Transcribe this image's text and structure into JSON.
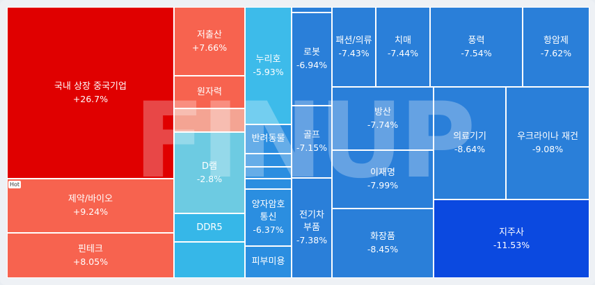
{
  "badge": {
    "hot": "Hot"
  },
  "watermark": "FINUP",
  "chart_data": {
    "type": "treemap",
    "value_unit": "%",
    "items": [
      {
        "name": "국내 상장 중국기업",
        "value": "+26.7%",
        "change": 26.7,
        "color": "#e00000"
      },
      {
        "name": "제약/바이오",
        "value": "+9.24%",
        "change": 9.24,
        "color": "#f7634f"
      },
      {
        "name": "핀테크",
        "value": "+8.05%",
        "change": 8.05,
        "color": "#f7634f"
      },
      {
        "name": "저출산",
        "value": "+7.66%",
        "change": 7.66,
        "color": "#f7634f"
      },
      {
        "name": "원자력",
        "value": "",
        "change": null,
        "color": "#f7634f"
      },
      {
        "name": "",
        "value": "",
        "change": null,
        "color": "#f4a493"
      },
      {
        "name": "D램",
        "value": "-2.8%",
        "change": -2.8,
        "color": "#6dcbe2"
      },
      {
        "name": "DDR5",
        "value": "",
        "change": null,
        "color": "#36b7e8"
      },
      {
        "name": "",
        "value": "",
        "change": null,
        "color": "#36b7e8"
      },
      {
        "name": "누리호",
        "value": "-5.93%",
        "change": -5.93,
        "color": "#3dbbea"
      },
      {
        "name": "반려동물",
        "value": "",
        "change": null,
        "color": "#2b8ee0"
      },
      {
        "name": "",
        "value": "",
        "change": null,
        "color": "#2b8ee0"
      },
      {
        "name": "",
        "value": "",
        "change": null,
        "color": "#2b8ee0"
      },
      {
        "name": "",
        "value": "",
        "change": null,
        "color": "#2b8ee0"
      },
      {
        "name": "양자암호 통신",
        "value": "-6.37%",
        "change": -6.37,
        "color": "#2b8ee0"
      },
      {
        "name": "피부미용",
        "value": "",
        "change": null,
        "color": "#2b8ee0"
      },
      {
        "name": "",
        "value": "",
        "change": null,
        "color": "#2a7fd9"
      },
      {
        "name": "로봇",
        "value": "-6.94%",
        "change": -6.94,
        "color": "#2a7fd9"
      },
      {
        "name": "골프",
        "value": "-7.15%",
        "change": -7.15,
        "color": "#2a7fd9"
      },
      {
        "name": "전기차 부품",
        "value": "-7.38%",
        "change": -7.38,
        "color": "#2a7fd9"
      },
      {
        "name": "패션/의류",
        "value": "-7.43%",
        "change": -7.43,
        "color": "#2a7fd9"
      },
      {
        "name": "치매",
        "value": "-7.44%",
        "change": -7.44,
        "color": "#2a7fd9"
      },
      {
        "name": "풍력",
        "value": "-7.54%",
        "change": -7.54,
        "color": "#2a7fd9"
      },
      {
        "name": "항암제",
        "value": "-7.62%",
        "change": -7.62,
        "color": "#2a7fd9"
      },
      {
        "name": "방산",
        "value": "-7.74%",
        "change": -7.74,
        "color": "#2a7fd9"
      },
      {
        "name": "이재명",
        "value": "-7.99%",
        "change": -7.99,
        "color": "#2a7fd9"
      },
      {
        "name": "화장품",
        "value": "-8.45%",
        "change": -8.45,
        "color": "#2a7fd9"
      },
      {
        "name": "의료기기",
        "value": "-8.64%",
        "change": -8.64,
        "color": "#2a7fd9"
      },
      {
        "name": "우크라이나 재건",
        "value": "-9.08%",
        "change": -9.08,
        "color": "#2a7fd9"
      },
      {
        "name": "지주사",
        "value": "-11.53%",
        "change": -11.53,
        "color": "#0b49e0"
      }
    ]
  }
}
